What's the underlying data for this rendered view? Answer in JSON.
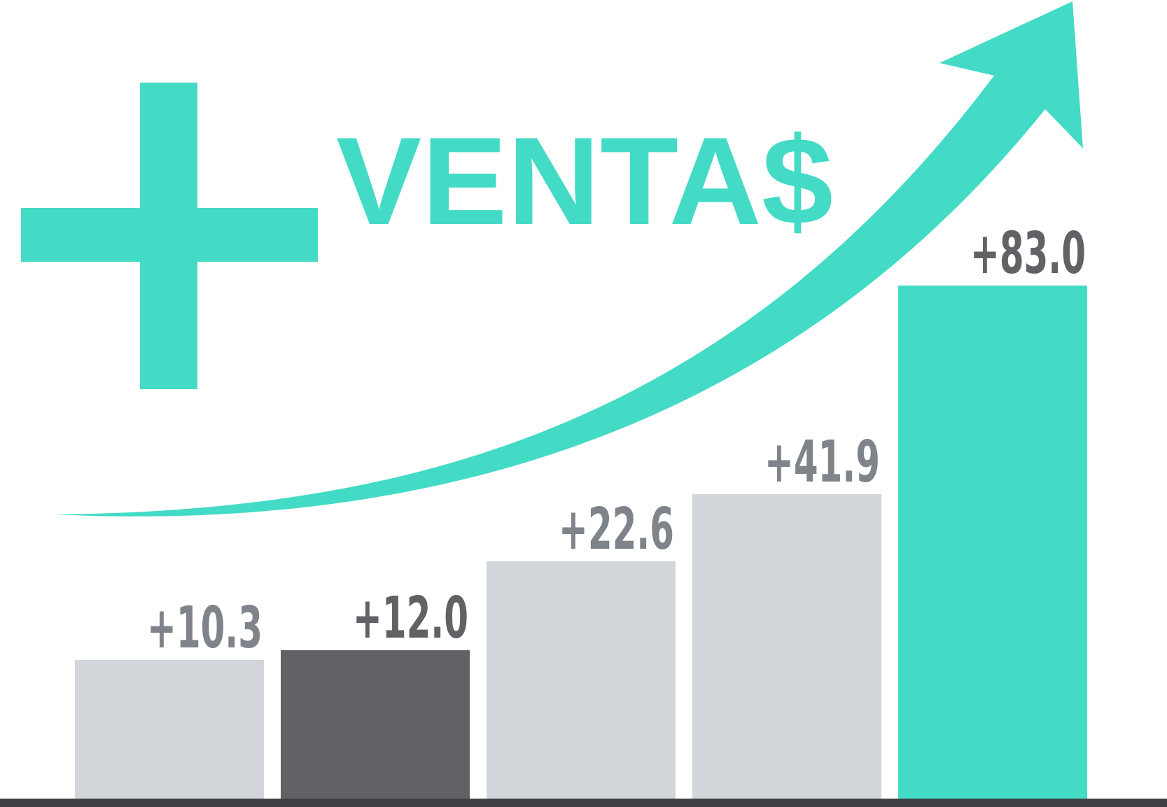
{
  "chart_data": {
    "type": "bar",
    "title": "VENTA$",
    "categories": [
      "",
      "",
      "",
      "",
      ""
    ],
    "values": [
      10.3,
      12.0,
      22.6,
      41.9,
      83.0
    ],
    "value_labels": [
      "+10.3",
      "+12.0",
      "+22.6",
      "+41.9",
      "+83.0"
    ],
    "xlabel": "",
    "ylabel": "",
    "ylim": [
      0,
      90
    ],
    "grid": false,
    "legend": "none",
    "trend_arrow": "up"
  },
  "colors": {
    "accent": "#43dbc5",
    "bar_light": "#d2d6db",
    "bar_dark": "#626266",
    "label_gray": "#7f838a",
    "label_dark": "#626266",
    "baseline": "#3f4043"
  },
  "bar_colors": [
    "#d2d6db",
    "#626266",
    "#d2d6db",
    "#d2d6db",
    "#43dbc5"
  ],
  "label_colors": [
    "#7f838a",
    "#626266",
    "#7f838a",
    "#7f838a",
    "#626266"
  ],
  "icons": {
    "plus": "plus-icon",
    "arrow": "trend-up-arrow-icon"
  }
}
